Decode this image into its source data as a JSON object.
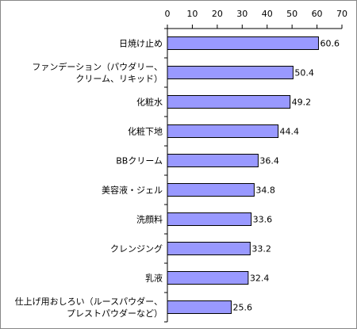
{
  "chart_data": {
    "type": "bar",
    "orientation": "horizontal",
    "categories": [
      [
        "日焼け止め"
      ],
      [
        "ファンデーション（パウダリー、",
        "クリーム、リキッド）"
      ],
      [
        "化粧水"
      ],
      [
        "化粧下地"
      ],
      [
        "BBクリーム"
      ],
      [
        "美容液・ジェル"
      ],
      [
        "洗顔料"
      ],
      [
        "クレンジング"
      ],
      [
        "乳液"
      ],
      [
        "仕上げ用おしろい（ルースパウダー、",
        "プレストパウダーなど）"
      ]
    ],
    "values": [
      60.6,
      50.4,
      49.2,
      44.4,
      36.4,
      34.8,
      33.6,
      33.2,
      32.4,
      25.6
    ],
    "value_labels": [
      "60.6",
      "50.4",
      "49.2",
      "44.4",
      "36.4",
      "34.8",
      "33.6",
      "33.2",
      "32.4",
      "25.6"
    ],
    "xlim": [
      0,
      70
    ],
    "ticks": [
      0,
      10,
      20,
      30,
      40,
      50,
      60,
      70
    ],
    "tick_labels": [
      "0",
      "10",
      "20",
      "30",
      "40",
      "50",
      "60",
      "70"
    ],
    "axis_position": "top",
    "grid": false,
    "colors": {
      "bar_fill": "#9999ff",
      "bar_stroke": "#000000",
      "axis": "#000000",
      "frame": "#888888"
    }
  }
}
